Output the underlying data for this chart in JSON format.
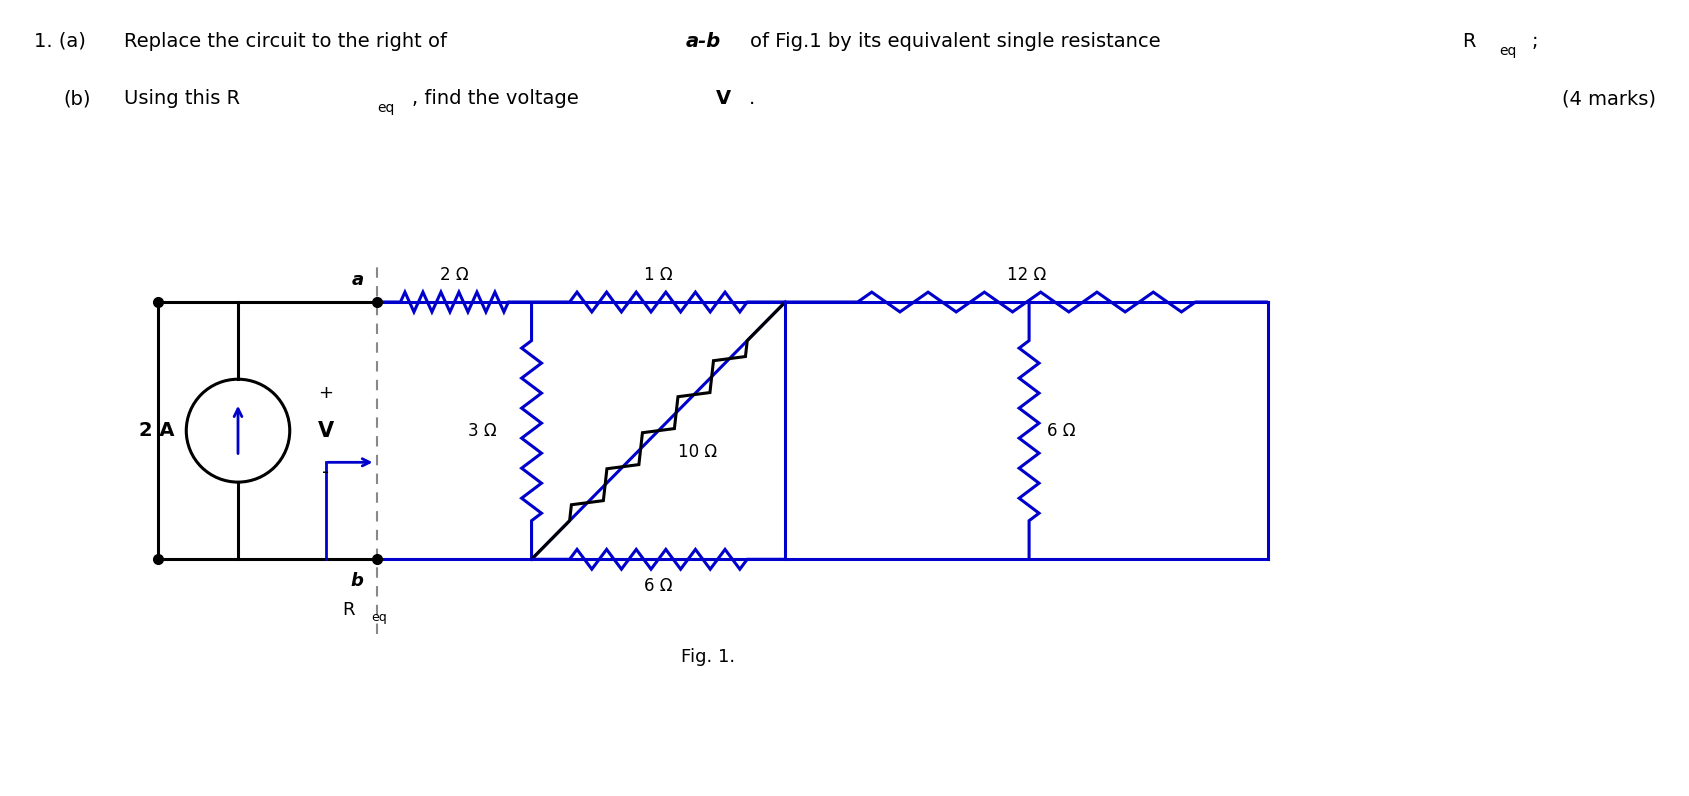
{
  "fig_label": "Fig. 1.",
  "current_source_label": "2 A",
  "voltage_label": "V",
  "plus_label": "+",
  "minus_label": "-",
  "a_label": "a",
  "b_label": "b",
  "Req_label": "R",
  "Req_sub": "eq",
  "R1_label": "2 Ω",
  "R2_label": "3 Ω",
  "R3_label": "1 Ω",
  "R4_label": "10 Ω",
  "R5_label": "6 Ω",
  "R6_label": "12 Ω",
  "R7_label": "6 Ω",
  "circuit_color": "#0000CC",
  "black_color": "#000000",
  "background": "#ffffff"
}
